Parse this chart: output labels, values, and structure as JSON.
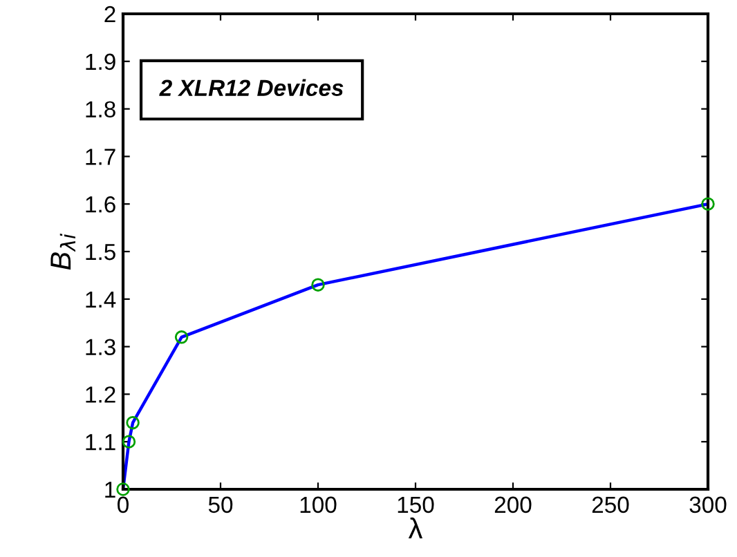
{
  "chart_data": {
    "type": "line",
    "xlabel": "λ",
    "ylabel": "B$_{λi}$",
    "annotations": [
      "2 XLR12 Devices"
    ],
    "x": [
      0,
      3,
      5,
      30,
      100,
      300
    ],
    "series": [
      {
        "color": "#0000ff",
        "values": [
          1.0,
          1.1,
          1.14,
          1.32,
          1.43,
          1.6
        ]
      }
    ],
    "marker": "circle",
    "line_style": "solid",
    "grid": false,
    "xlim": [
      0,
      300
    ],
    "xticks": [
      0,
      50,
      100,
      150,
      200,
      250,
      300
    ],
    "ylim": [
      1,
      2
    ],
    "yticks": [
      1,
      1.1,
      1.2,
      1.3,
      1.4,
      1.5,
      1.6,
      1.7,
      1.8,
      1.9,
      2
    ]
  }
}
